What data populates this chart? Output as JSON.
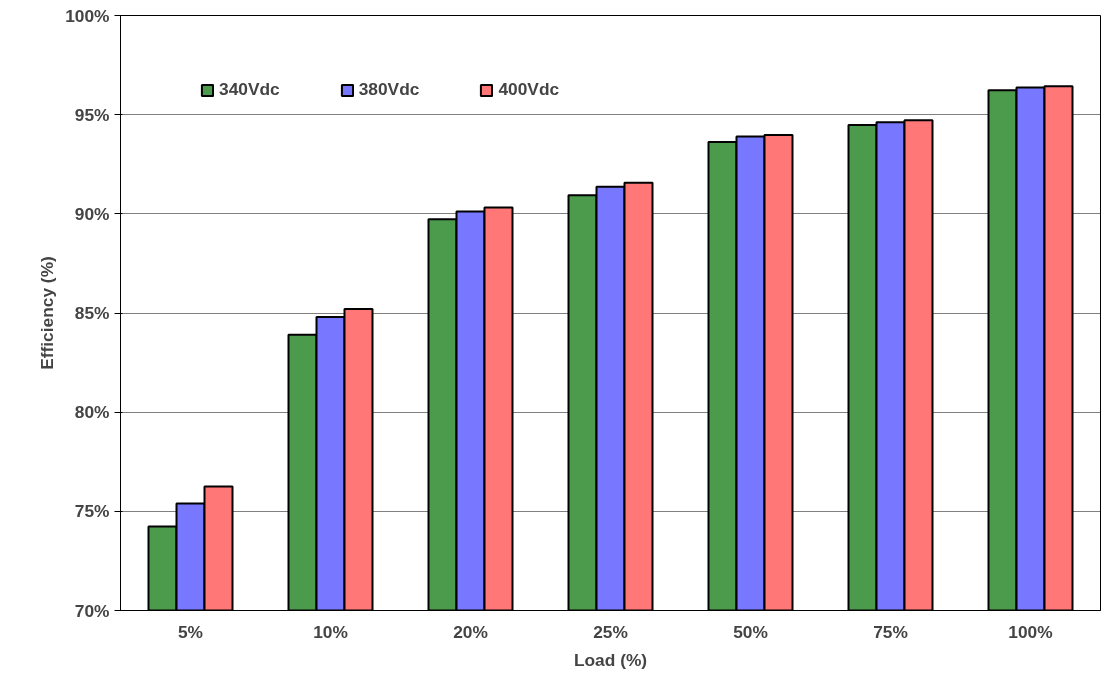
{
  "chart_data": {
    "type": "bar",
    "xlabel": "Load (%)",
    "ylabel": "Efficiency (%)",
    "categories": [
      "5%",
      "10%",
      "20%",
      "25%",
      "50%",
      "75%",
      "100%"
    ],
    "series": [
      {
        "name": "340Vdc",
        "color": "#4c9a4c",
        "values": [
          74.24,
          83.9,
          89.73,
          90.94,
          93.62,
          94.48,
          96.23
        ]
      },
      {
        "name": "380Vdc",
        "color": "#7777ff",
        "values": [
          75.4,
          84.8,
          90.12,
          91.37,
          93.9,
          94.62,
          96.37
        ]
      },
      {
        "name": "400Vdc",
        "color": "#ff7777",
        "values": [
          76.25,
          85.2,
          90.32,
          91.57,
          93.97,
          94.72,
          96.43
        ]
      }
    ],
    "ylim": [
      70,
      100
    ],
    "yticks": [
      {
        "value": 70,
        "label": "70%"
      },
      {
        "value": 75,
        "label": "75%"
      },
      {
        "value": 80,
        "label": "80%"
      },
      {
        "value": 85,
        "label": "85%"
      },
      {
        "value": 90,
        "label": "90%"
      },
      {
        "value": 95,
        "label": "95%"
      },
      {
        "value": 100,
        "label": "100%"
      }
    ],
    "grid": "y",
    "legend": "top left"
  }
}
